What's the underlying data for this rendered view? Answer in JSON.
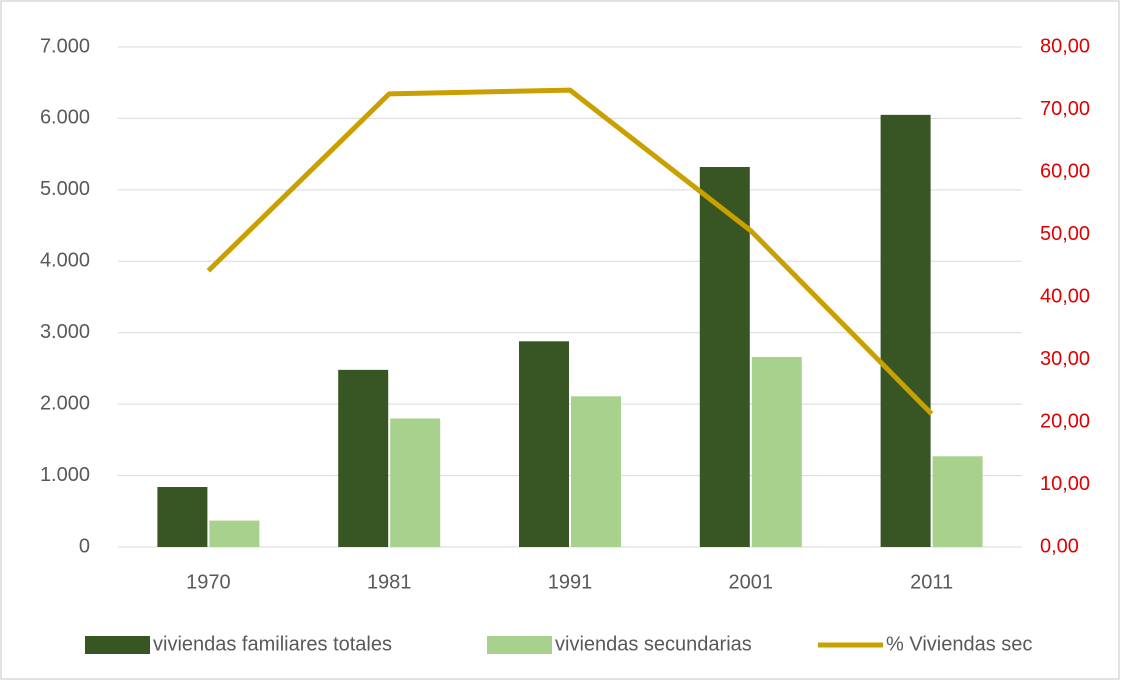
{
  "chart_data": {
    "type": "bar",
    "categories": [
      "1970",
      "1981",
      "1991",
      "2001",
      "2011"
    ],
    "series": [
      {
        "name": "viviendas familiares totales",
        "color": "#375623",
        "values": [
          840,
          2480,
          2880,
          5320,
          6050
        ]
      },
      {
        "name": "viviendas secundarias",
        "color": "#a9d18e",
        "values": [
          370,
          1800,
          2110,
          2660,
          1270
        ]
      },
      {
        "name": "% Viviendas sec",
        "color": "#c9a000",
        "type": "line",
        "axis": "y2",
        "values": [
          44.2,
          72.5,
          73.1,
          50.6,
          21.3
        ]
      }
    ],
    "ylim": [
      0,
      7000
    ],
    "yticks": [
      0,
      {
        "value": 1000,
        "label": "1.000"
      },
      {
        "value": 2000,
        "label": "2.000"
      },
      {
        "value": 3000,
        "label": "3.000"
      },
      {
        "value": 4000,
        "label": "4.000"
      },
      {
        "value": 5000,
        "label": "5.000"
      },
      {
        "value": 6000,
        "label": "6.000"
      },
      {
        "value": 7000,
        "label": "7.000"
      }
    ],
    "y2lim": [
      0,
      80
    ],
    "y2ticks": [
      {
        "value": 0,
        "label": "0,00"
      },
      {
        "value": 10,
        "label": "10,00"
      },
      {
        "value": 20,
        "label": "20,00"
      },
      {
        "value": 30,
        "label": "30,00"
      },
      {
        "value": 40,
        "label": "40,00"
      },
      {
        "value": 50,
        "label": "50,00"
      },
      {
        "value": 60,
        "label": "60,00"
      },
      {
        "value": 70,
        "label": "70,00"
      },
      {
        "value": 80,
        "label": "80,00"
      }
    ],
    "y2color": "#e00000",
    "grid": true,
    "legend": "bottom"
  }
}
